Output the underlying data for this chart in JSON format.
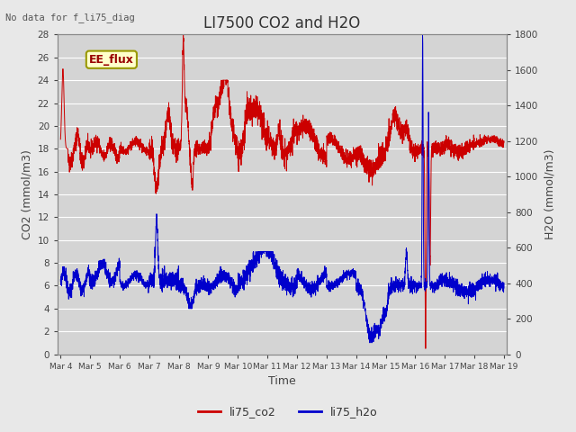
{
  "title": "LI7500 CO2 and H2O",
  "top_left_text": "No data for f_li75_diag",
  "xlabel": "Time",
  "ylabel_left": "CO2 (mmol/m3)",
  "ylabel_right": "H2O (mmol/m3)",
  "ylim_left": [
    0,
    28
  ],
  "ylim_right": [
    0,
    1800
  ],
  "co2_color": "#cc0000",
  "h2o_color": "#0000cc",
  "background_color": "#e8e8e8",
  "plot_bg_color": "#d4d4d4",
  "grid_color": "#ffffff",
  "annotation_text": "EE_flux",
  "annotation_bg": "#ffffcc",
  "annotation_border": "#999900",
  "title_fontsize": 12,
  "axis_label_fontsize": 9,
  "tick_fontsize": 7.5,
  "legend_fontsize": 9,
  "x_tick_labels": [
    "Mar 4",
    "Mar 5",
    "Mar 6",
    "Mar 7",
    "Mar 8",
    "Mar 9",
    "Mar 10",
    "Mar 11",
    "Mar 12",
    "Mar 13",
    "Mar 14",
    "Mar 15",
    "Mar 16",
    "Mar 17",
    "Mar 18",
    "Mar 19"
  ],
  "x_tick_positions": [
    0,
    1,
    2,
    3,
    4,
    5,
    6,
    7,
    8,
    9,
    10,
    11,
    12,
    13,
    14,
    15
  ],
  "xlim": [
    -0.1,
    15.1
  ]
}
